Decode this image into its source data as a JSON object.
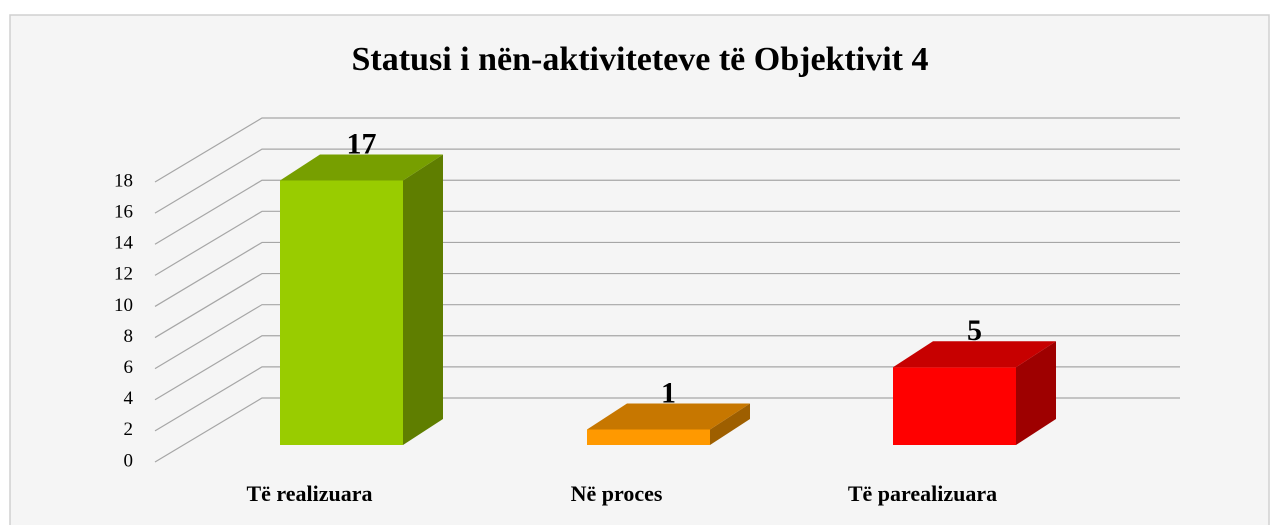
{
  "chart_data": {
    "type": "bar",
    "title": "Statusi i nën-aktiviteteve të Objektivit 4",
    "categories": [
      "Të realizuara",
      "Në proces",
      "Të parealizuara"
    ],
    "values": [
      17,
      1,
      5
    ],
    "colors": [
      "#99cc00",
      "#ff9900",
      "#ff0000"
    ],
    "ylim": [
      0,
      18
    ],
    "yticks": [
      0,
      2,
      4,
      6,
      8,
      10,
      12,
      14,
      16,
      18
    ],
    "grid": true
  }
}
